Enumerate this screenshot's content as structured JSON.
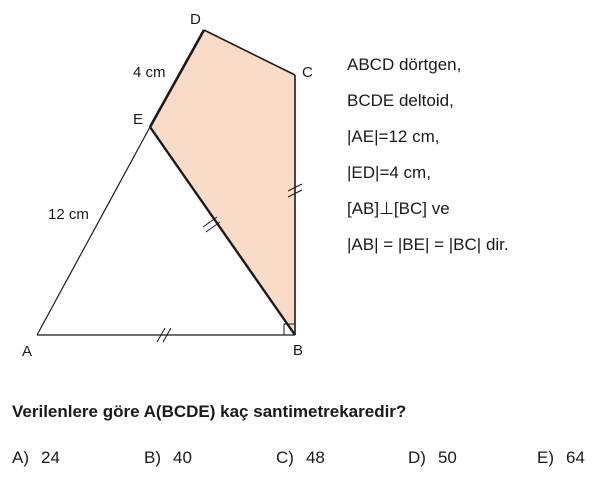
{
  "figure": {
    "points": {
      "A": "A",
      "B": "B",
      "C": "C",
      "D": "D",
      "E": "E"
    },
    "lengths": {
      "ED": "4 cm",
      "AE": "12 cm"
    },
    "fill_color": "#f9dcc8",
    "line_color": "#1a1a1a"
  },
  "givens": [
    "ABCD dörtgen,",
    "BCDE deltoid,",
    "|AE|=12 cm,",
    "|ED|=4 cm,",
    "[AB]⊥[BC]  ve",
    "|AB| = |BE| = |BC| dir."
  ],
  "question": "Verilenlere göre A(BCDE) kaç santimetrekaredir?",
  "options": [
    {
      "letter": "A)",
      "value": "24"
    },
    {
      "letter": "B)",
      "value": "40"
    },
    {
      "letter": "C)",
      "value": "48"
    },
    {
      "letter": "D)",
      "value": "50"
    },
    {
      "letter": "E)",
      "value": "64"
    }
  ]
}
